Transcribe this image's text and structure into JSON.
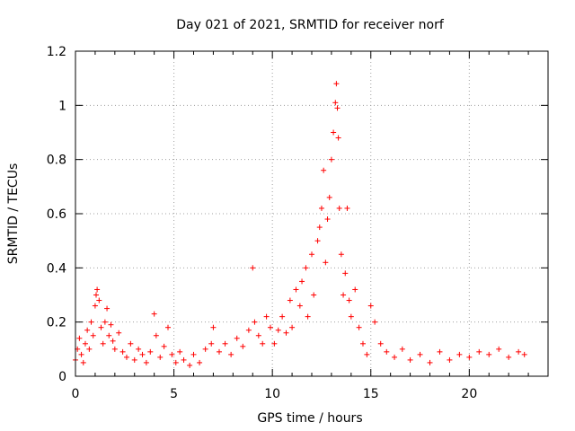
{
  "chart_data": {
    "type": "scatter",
    "title": "Day 021 of 2021, SRMTID for receiver norf",
    "xlabel": "GPS time / hours",
    "ylabel": "SRMTID / TECUs",
    "xlim": [
      0,
      24
    ],
    "ylim": [
      0,
      1.2
    ],
    "xticks": [
      0,
      5,
      10,
      15,
      20
    ],
    "xtick_labels": [
      "0",
      "5",
      "10",
      "15",
      "20"
    ],
    "yticks": [
      0,
      0.2,
      0.4,
      0.6,
      0.8,
      1.0,
      1.2
    ],
    "ytick_labels": [
      "0",
      "0.2",
      "0.4",
      "0.6",
      "0.8",
      "1",
      "1.2"
    ],
    "grid": true,
    "marker": "+",
    "color": "#ff0000",
    "series": [
      {
        "name": "SRMTID",
        "approx_points": [
          [
            0.0,
            0.06
          ],
          [
            0.1,
            0.1
          ],
          [
            0.2,
            0.14
          ],
          [
            0.3,
            0.08
          ],
          [
            0.4,
            0.05
          ],
          [
            0.5,
            0.12
          ],
          [
            0.6,
            0.17
          ],
          [
            0.7,
            0.1
          ],
          [
            0.8,
            0.2
          ],
          [
            0.9,
            0.15
          ],
          [
            1.0,
            0.26
          ],
          [
            1.05,
            0.3
          ],
          [
            1.1,
            0.32
          ],
          [
            1.2,
            0.28
          ],
          [
            1.3,
            0.18
          ],
          [
            1.4,
            0.12
          ],
          [
            1.5,
            0.2
          ],
          [
            1.6,
            0.25
          ],
          [
            1.7,
            0.15
          ],
          [
            1.8,
            0.19
          ],
          [
            1.9,
            0.13
          ],
          [
            2.0,
            0.1
          ],
          [
            2.2,
            0.16
          ],
          [
            2.4,
            0.09
          ],
          [
            2.6,
            0.07
          ],
          [
            2.8,
            0.12
          ],
          [
            3.0,
            0.06
          ],
          [
            3.2,
            0.1
          ],
          [
            3.4,
            0.08
          ],
          [
            3.6,
            0.05
          ],
          [
            3.8,
            0.09
          ],
          [
            4.0,
            0.23
          ],
          [
            4.1,
            0.15
          ],
          [
            4.3,
            0.07
          ],
          [
            4.5,
            0.11
          ],
          [
            4.7,
            0.18
          ],
          [
            4.9,
            0.08
          ],
          [
            5.1,
            0.05
          ],
          [
            5.3,
            0.09
          ],
          [
            5.5,
            0.06
          ],
          [
            5.8,
            0.04
          ],
          [
            6.0,
            0.08
          ],
          [
            6.3,
            0.05
          ],
          [
            6.6,
            0.1
          ],
          [
            6.9,
            0.12
          ],
          [
            7.0,
            0.18
          ],
          [
            7.3,
            0.09
          ],
          [
            7.6,
            0.12
          ],
          [
            7.9,
            0.08
          ],
          [
            8.2,
            0.14
          ],
          [
            8.5,
            0.11
          ],
          [
            8.8,
            0.17
          ],
          [
            9.0,
            0.4
          ],
          [
            9.1,
            0.2
          ],
          [
            9.3,
            0.15
          ],
          [
            9.5,
            0.12
          ],
          [
            9.7,
            0.22
          ],
          [
            9.9,
            0.18
          ],
          [
            10.1,
            0.12
          ],
          [
            10.3,
            0.17
          ],
          [
            10.5,
            0.22
          ],
          [
            10.7,
            0.16
          ],
          [
            10.9,
            0.28
          ],
          [
            11.0,
            0.18
          ],
          [
            11.2,
            0.32
          ],
          [
            11.4,
            0.26
          ],
          [
            11.5,
            0.35
          ],
          [
            11.7,
            0.4
          ],
          [
            11.8,
            0.22
          ],
          [
            12.0,
            0.45
          ],
          [
            12.1,
            0.3
          ],
          [
            12.3,
            0.5
          ],
          [
            12.4,
            0.55
          ],
          [
            12.5,
            0.62
          ],
          [
            12.6,
            0.76
          ],
          [
            12.7,
            0.42
          ],
          [
            12.8,
            0.58
          ],
          [
            12.9,
            0.66
          ],
          [
            13.0,
            0.8
          ],
          [
            13.1,
            0.9
          ],
          [
            13.2,
            1.01
          ],
          [
            13.25,
            1.08
          ],
          [
            13.3,
            0.99
          ],
          [
            13.35,
            0.88
          ],
          [
            13.4,
            0.62
          ],
          [
            13.5,
            0.45
          ],
          [
            13.6,
            0.3
          ],
          [
            13.7,
            0.38
          ],
          [
            13.8,
            0.62
          ],
          [
            13.9,
            0.28
          ],
          [
            14.0,
            0.22
          ],
          [
            14.2,
            0.32
          ],
          [
            14.4,
            0.18
          ],
          [
            14.6,
            0.12
          ],
          [
            14.8,
            0.08
          ],
          [
            15.0,
            0.26
          ],
          [
            15.2,
            0.2
          ],
          [
            15.5,
            0.12
          ],
          [
            15.8,
            0.09
          ],
          [
            16.2,
            0.07
          ],
          [
            16.6,
            0.1
          ],
          [
            17.0,
            0.06
          ],
          [
            17.5,
            0.08
          ],
          [
            18.0,
            0.05
          ],
          [
            18.5,
            0.09
          ],
          [
            19.0,
            0.06
          ],
          [
            19.5,
            0.08
          ],
          [
            20.0,
            0.07
          ],
          [
            20.5,
            0.09
          ],
          [
            21.0,
            0.08
          ],
          [
            21.5,
            0.1
          ],
          [
            22.0,
            0.07
          ],
          [
            22.5,
            0.09
          ],
          [
            22.8,
            0.08
          ]
        ]
      }
    ]
  }
}
